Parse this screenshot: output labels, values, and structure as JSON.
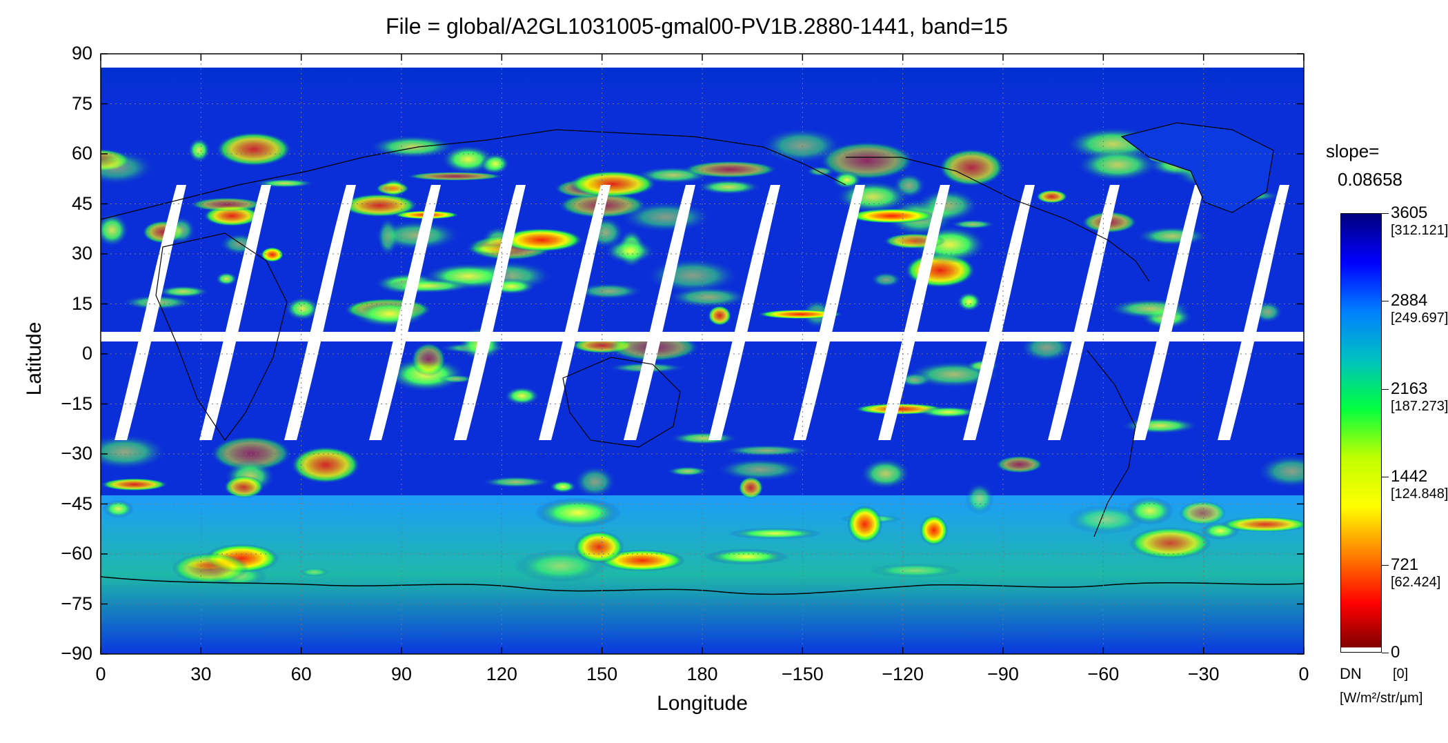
{
  "title": "File = global/A2GL1031005-gmal00-PV1B.2880-1441, band=15",
  "xlabel": "Longitude",
  "ylabel": "Latitude",
  "x_ticks": [
    "0",
    "30",
    "60",
    "90",
    "120",
    "150",
    "180",
    "−150",
    "−120",
    "−90",
    "−60",
    "−30",
    "0"
  ],
  "y_ticks": [
    "90",
    "75",
    "60",
    "45",
    "30",
    "15",
    "0",
    "−15",
    "−30",
    "−45",
    "−60",
    "−75",
    "−90"
  ],
  "slope": {
    "label": "slope=",
    "value": "0.08658"
  },
  "colorbar": {
    "labels": [
      {
        "dn": "3605",
        "rad": "[312.121]"
      },
      {
        "dn": "2884",
        "rad": "[249.697]"
      },
      {
        "dn": "2163",
        "rad": "[187.273]"
      },
      {
        "dn": "1442",
        "rad": "[124.848]"
      },
      {
        "dn": "721",
        "rad": "[62.424]"
      },
      {
        "dn": "0",
        "rad": "[0]"
      }
    ],
    "dn_label": "DN",
    "units": "[W/m²/str/µm]",
    "colors": [
      "#00007f",
      "#0000ff",
      "#0080ff",
      "#00c0c0",
      "#00ff40",
      "#c0ff00",
      "#ffff00",
      "#ff8000",
      "#ff0000",
      "#800000"
    ]
  },
  "map_colors": {
    "background": "#0a2fd8",
    "swath_gap": "#ffffff",
    "coastline": "#000000",
    "grid": "#808080"
  }
}
